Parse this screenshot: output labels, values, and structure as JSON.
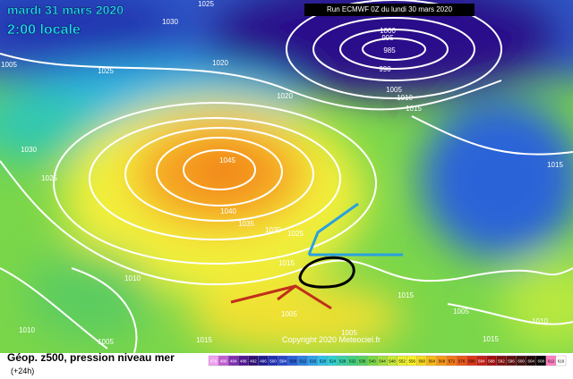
{
  "header": {
    "date": "mardi 31 mars 2020",
    "time": "2:00 locale",
    "run": "Run ECMWF 0Z du lundi 30 mars 2020"
  },
  "map": {
    "isobar_labels": [
      "1025",
      "1030",
      "1005",
      "1025",
      "1020",
      "1020",
      "1000",
      "995",
      "985",
      "990",
      "1005",
      "1010",
      "1015",
      "1015",
      "1030",
      "1025",
      "1045",
      "1040",
      "1035",
      "1030",
      "1025",
      "1015",
      "1010",
      "1010",
      "1005",
      "1005",
      "1015",
      "1015",
      "1005",
      "1010",
      "1015",
      "1005"
    ],
    "copyright": "Copyright 2020 Meteociel.fr"
  },
  "footer": {
    "title": "Géop. z500, pression niveau mer",
    "lead": "(+24h)"
  },
  "legend": {
    "scale": [
      476,
      480,
      484,
      488,
      492,
      496,
      500,
      504,
      508,
      512,
      516,
      520,
      524,
      528,
      532,
      536,
      540,
      544,
      548,
      552,
      556,
      560,
      564,
      568,
      572,
      576,
      580,
      584,
      588,
      592,
      596,
      600,
      604,
      608,
      612,
      616
    ]
  }
}
